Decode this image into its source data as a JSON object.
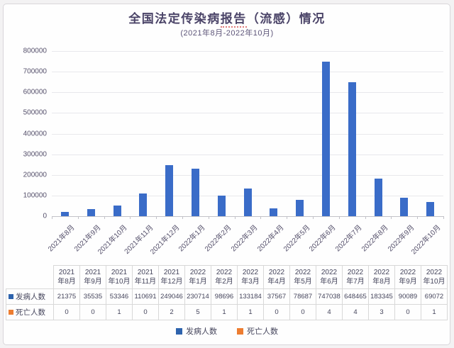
{
  "header": {
    "title_prefix": "全国法定传染病",
    "title_underlined": "报告",
    "title_suffix": "（流感）情况",
    "subtitle": "(2021年8月-2022年10月)"
  },
  "chart_data": {
    "type": "bar",
    "title": "全国法定传染病报告（流感）情况",
    "subtitle": "(2021年8月-2022年10月)",
    "categories": [
      "2021年8月",
      "2021年9月",
      "2021年10月",
      "2021年11月",
      "2021年12月",
      "2022年1月",
      "2022年2月",
      "2022年3月",
      "2022年4月",
      "2022年5月",
      "2022年6月",
      "2022年7月",
      "2022年8月",
      "2022年9月",
      "2022年10月"
    ],
    "series": [
      {
        "name": "发病人数",
        "color": "#3a6cc8",
        "swatch_color": "#2e63ad",
        "values": [
          21375,
          35535,
          53346,
          110691,
          249046,
          230714,
          98696,
          133184,
          37567,
          78687,
          747038,
          648465,
          183345,
          90089,
          69072
        ]
      },
      {
        "name": "死亡人数",
        "color": "#ed7d31",
        "swatch_color": "#ed7d31",
        "values": [
          0,
          0,
          1,
          0,
          2,
          5,
          1,
          1,
          0,
          0,
          4,
          4,
          3,
          0,
          1
        ]
      }
    ],
    "ylim": [
      0,
      800000
    ],
    "ytick_step": 100000,
    "ytick_labels": [
      "0",
      "100000",
      "200000",
      "300000",
      "400000",
      "500000",
      "600000",
      "700000",
      "800000"
    ],
    "grid": true,
    "legend_position": "bottom",
    "x_label_rotation": -45
  },
  "table": {
    "row_headers": [
      "发病人数",
      "死亡人数"
    ]
  },
  "legend": {
    "items": [
      {
        "label": "发病人数",
        "color": "#2e63ad"
      },
      {
        "label": "死亡人数",
        "color": "#ed7d31"
      }
    ]
  }
}
